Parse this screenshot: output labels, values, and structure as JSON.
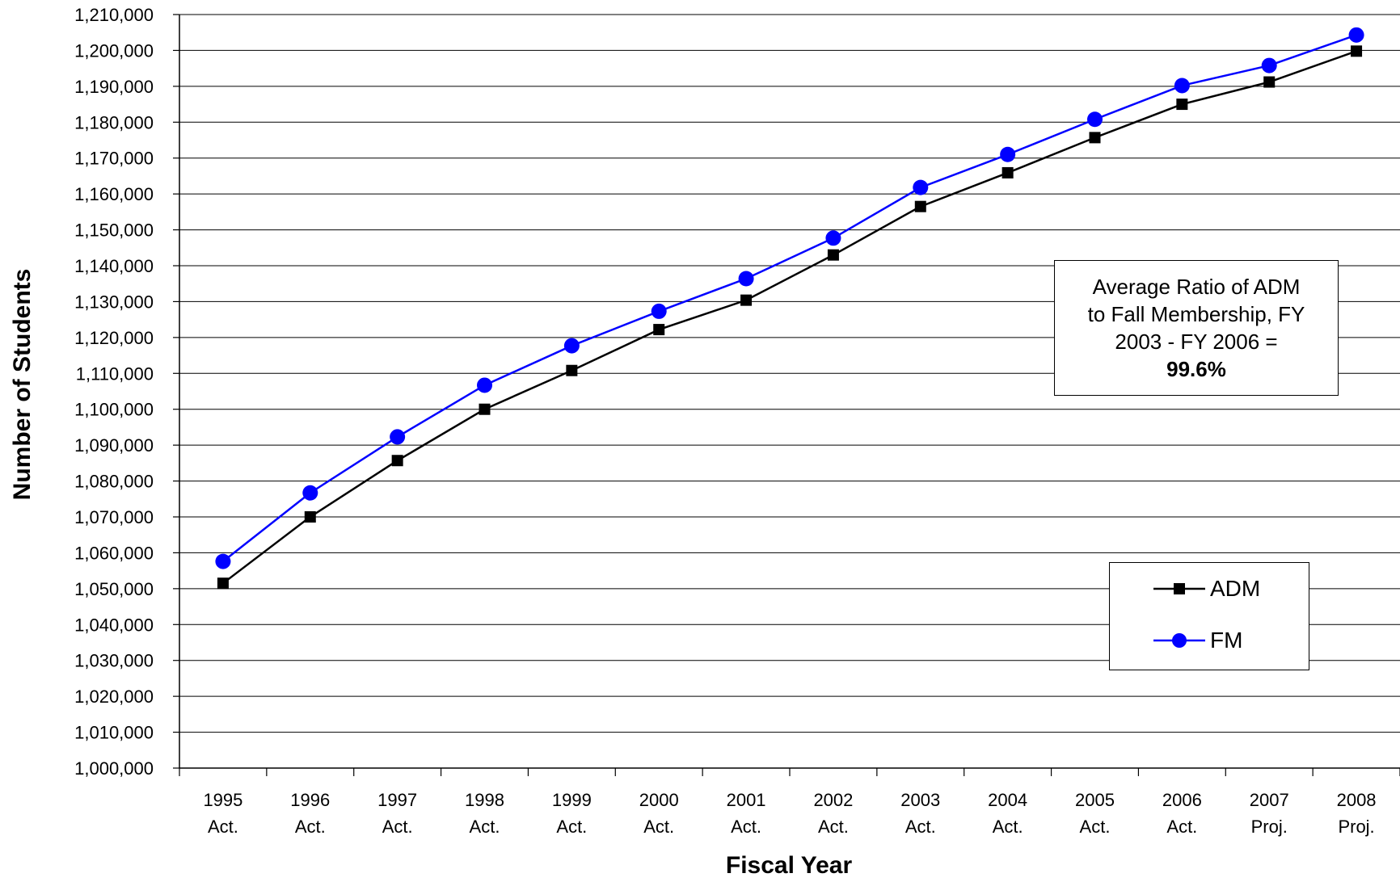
{
  "chart_data": {
    "type": "line",
    "xlabel": "Fiscal Year",
    "ylabel": "Number of Students",
    "ylim": [
      1000000,
      1210000
    ],
    "ytick_step": 10000,
    "grid": "horizontal",
    "legend_position": "bottom-right",
    "categories": [
      [
        "1995",
        "Act."
      ],
      [
        "1996",
        "Act."
      ],
      [
        "1997",
        "Act."
      ],
      [
        "1998",
        "Act."
      ],
      [
        "1999",
        "Act."
      ],
      [
        "2000",
        "Act."
      ],
      [
        "2001",
        "Act."
      ],
      [
        "2002",
        "Act."
      ],
      [
        "2003",
        "Act."
      ],
      [
        "2004",
        "Act."
      ],
      [
        "2005",
        "Act."
      ],
      [
        "2006",
        "Act."
      ],
      [
        "2007",
        "Proj."
      ],
      [
        "2008",
        "Proj."
      ]
    ],
    "series": [
      {
        "name": "ADM",
        "color": "#000000",
        "marker": "square",
        "values": [
          1051500,
          1070000,
          1085700,
          1100000,
          1110800,
          1122200,
          1130400,
          1143000,
          1156500,
          1165900,
          1175700,
          1185000,
          1191200,
          1199800
        ]
      },
      {
        "name": "FM",
        "color": "#0000ff",
        "marker": "circle",
        "values": [
          1057600,
          1076700,
          1092300,
          1106700,
          1117700,
          1127300,
          1136400,
          1147700,
          1161800,
          1171000,
          1180800,
          1190200,
          1195800,
          1204300
        ]
      }
    ],
    "annotation": {
      "lines": [
        "Average Ratio of ADM",
        "to Fall Membership,  FY",
        "2003 - FY 2006 ="
      ],
      "value": "99.6%"
    }
  }
}
